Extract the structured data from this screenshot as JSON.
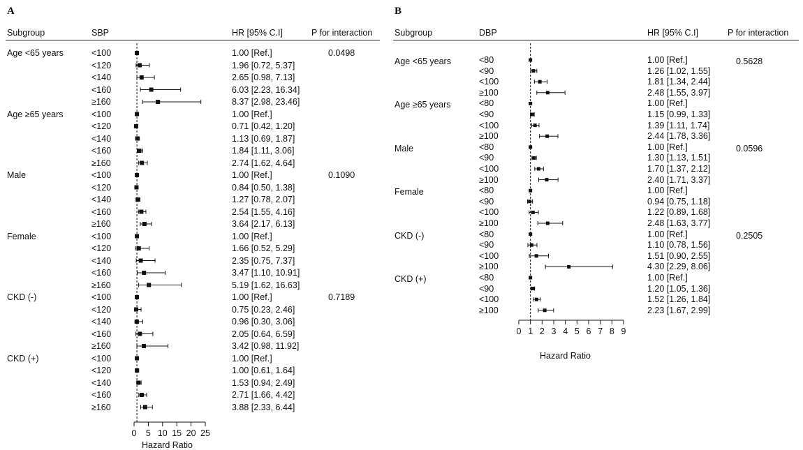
{
  "chart_data": [
    {
      "type": "forest",
      "panel_label": "A",
      "headers": {
        "subgroup": "Subgroup",
        "category": "SBP",
        "hr": "HR [95% C.I]",
        "p": "P for interaction"
      },
      "xlabel": "Hazard Ratio",
      "xlim": [
        0,
        25
      ],
      "xticks": [
        0,
        5,
        10,
        15,
        20,
        25
      ],
      "reference_line": 1,
      "groups": [
        {
          "name": "Age <65 years",
          "p": "0.0498",
          "rows": [
            {
              "cat": "<100",
              "hr": 1.0,
              "lo": null,
              "hi": null,
              "text": "1.00 [Ref.]"
            },
            {
              "cat": "<120",
              "hr": 1.96,
              "lo": 0.72,
              "hi": 5.37,
              "text": "1.96 [0.72, 5.37]"
            },
            {
              "cat": "<140",
              "hr": 2.65,
              "lo": 0.98,
              "hi": 7.13,
              "text": "2.65 [0.98, 7.13]"
            },
            {
              "cat": "<160",
              "hr": 6.03,
              "lo": 2.23,
              "hi": 16.34,
              "text": "6.03 [2.23, 16.34]"
            },
            {
              "cat": "≥160",
              "hr": 8.37,
              "lo": 2.98,
              "hi": 23.46,
              "text": "8.37 [2.98, 23.46]"
            }
          ]
        },
        {
          "name": "Age ≥65 years",
          "p": "",
          "rows": [
            {
              "cat": "<100",
              "hr": 1.0,
              "lo": null,
              "hi": null,
              "text": "1.00 [Ref.]"
            },
            {
              "cat": "<120",
              "hr": 0.71,
              "lo": 0.42,
              "hi": 1.2,
              "text": "0.71 [0.42, 1.20]"
            },
            {
              "cat": "<140",
              "hr": 1.13,
              "lo": 0.69,
              "hi": 1.87,
              "text": "1.13 [0.69, 1.87]"
            },
            {
              "cat": "<160",
              "hr": 1.84,
              "lo": 1.11,
              "hi": 3.06,
              "text": "1.84 [1.11, 3.06]"
            },
            {
              "cat": "≥160",
              "hr": 2.74,
              "lo": 1.62,
              "hi": 4.64,
              "text": "2.74 [1.62, 4.64]"
            }
          ]
        },
        {
          "name": "Male",
          "p": "0.1090",
          "rows": [
            {
              "cat": "<100",
              "hr": 1.0,
              "lo": null,
              "hi": null,
              "text": "1.00 [Ref.]"
            },
            {
              "cat": "<120",
              "hr": 0.84,
              "lo": 0.5,
              "hi": 1.38,
              "text": "0.84 [0.50, 1.38]"
            },
            {
              "cat": "<140",
              "hr": 1.27,
              "lo": 0.78,
              "hi": 2.07,
              "text": "1.27 [0.78, 2.07]"
            },
            {
              "cat": "<160",
              "hr": 2.54,
              "lo": 1.55,
              "hi": 4.16,
              "text": "2.54 [1.55, 4.16]"
            },
            {
              "cat": "≥160",
              "hr": 3.64,
              "lo": 2.17,
              "hi": 6.13,
              "text": "3.64 [2.17, 6.13]"
            }
          ]
        },
        {
          "name": "Female",
          "p": "",
          "rows": [
            {
              "cat": "<100",
              "hr": 1.0,
              "lo": null,
              "hi": null,
              "text": "1.00 [Ref.]"
            },
            {
              "cat": "<120",
              "hr": 1.66,
              "lo": 0.52,
              "hi": 5.29,
              "text": "1.66 [0.52, 5.29]"
            },
            {
              "cat": "<140",
              "hr": 2.35,
              "lo": 0.75,
              "hi": 7.37,
              "text": "2.35 [0.75, 7.37]"
            },
            {
              "cat": "<160",
              "hr": 3.47,
              "lo": 1.1,
              "hi": 10.91,
              "text": "3.47 [1.10, 10.91]"
            },
            {
              "cat": "≥160",
              "hr": 5.19,
              "lo": 1.62,
              "hi": 16.63,
              "text": "5.19 [1.62, 16.63]"
            }
          ]
        },
        {
          "name": "CKD (-)",
          "p": "0.7189",
          "rows": [
            {
              "cat": "<100",
              "hr": 1.0,
              "lo": null,
              "hi": null,
              "text": "1.00 [Ref.]"
            },
            {
              "cat": "<120",
              "hr": 0.75,
              "lo": 0.23,
              "hi": 2.46,
              "text": "0.75 [0.23, 2.46]"
            },
            {
              "cat": "<140",
              "hr": 0.96,
              "lo": 0.3,
              "hi": 3.06,
              "text": "0.96 [0.30, 3.06]"
            },
            {
              "cat": "<160",
              "hr": 2.05,
              "lo": 0.64,
              "hi": 6.59,
              "text": "2.05 [0.64, 6.59]"
            },
            {
              "cat": "≥160",
              "hr": 3.42,
              "lo": 0.98,
              "hi": 11.92,
              "text": "3.42 [0.98, 11.92]"
            }
          ]
        },
        {
          "name": "CKD (+)",
          "p": "",
          "rows": [
            {
              "cat": "<100",
              "hr": 1.0,
              "lo": null,
              "hi": null,
              "text": "1.00 [Ref.]"
            },
            {
              "cat": "<120",
              "hr": 1.0,
              "lo": 0.61,
              "hi": 1.64,
              "text": "1.00 [0.61, 1.64]"
            },
            {
              "cat": "<140",
              "hr": 1.53,
              "lo": 0.94,
              "hi": 2.49,
              "text": "1.53 [0.94, 2.49]"
            },
            {
              "cat": "<160",
              "hr": 2.71,
              "lo": 1.66,
              "hi": 4.42,
              "text": "2.71 [1.66, 4.42]"
            },
            {
              "cat": "≥160",
              "hr": 3.88,
              "lo": 2.33,
              "hi": 6.44,
              "text": "3.88 [2.33, 6.44]"
            }
          ]
        }
      ]
    },
    {
      "type": "forest",
      "panel_label": "B",
      "headers": {
        "subgroup": "Subgroup",
        "category": "DBP",
        "hr": "HR [95% C.I]",
        "p": "P for interaction"
      },
      "xlabel": "Hazard Ratio",
      "xlim": [
        0,
        9
      ],
      "xticks": [
        0,
        1,
        2,
        3,
        4,
        5,
        6,
        7,
        8,
        9
      ],
      "reference_line": 1,
      "groups": [
        {
          "name": "Age <65 years",
          "p": "0.5628",
          "rows": [
            {
              "cat": "<80",
              "hr": 1.0,
              "lo": null,
              "hi": null,
              "text": "1.00 [Ref.]"
            },
            {
              "cat": "<90",
              "hr": 1.26,
              "lo": 1.02,
              "hi": 1.55,
              "text": "1.26 [1.02, 1.55]"
            },
            {
              "cat": "<100",
              "hr": 1.81,
              "lo": 1.34,
              "hi": 2.44,
              "text": "1.81 [1.34, 2.44]"
            },
            {
              "cat": "≥100",
              "hr": 2.48,
              "lo": 1.55,
              "hi": 3.97,
              "text": "2.48 [1.55, 3.97]"
            }
          ]
        },
        {
          "name": "Age ≥65 years",
          "p": "",
          "rows": [
            {
              "cat": "<80",
              "hr": 1.0,
              "lo": null,
              "hi": null,
              "text": "1.00 [Ref.]"
            },
            {
              "cat": "<90",
              "hr": 1.15,
              "lo": 0.99,
              "hi": 1.33,
              "text": "1.15 [0.99, 1.33]"
            },
            {
              "cat": "<100",
              "hr": 1.39,
              "lo": 1.11,
              "hi": 1.74,
              "text": "1.39 [1.11, 1.74]"
            },
            {
              "cat": "≥100",
              "hr": 2.44,
              "lo": 1.78,
              "hi": 3.36,
              "text": "2.44 [1.78, 3.36]"
            }
          ]
        },
        {
          "name": "Male",
          "p": "0.0596",
          "rows": [
            {
              "cat": "<80",
              "hr": 1.0,
              "lo": null,
              "hi": null,
              "text": "1.00 [Ref.]"
            },
            {
              "cat": "<90",
              "hr": 1.3,
              "lo": 1.13,
              "hi": 1.51,
              "text": "1.30 [1.13, 1.51]"
            },
            {
              "cat": "<100",
              "hr": 1.7,
              "lo": 1.37,
              "hi": 2.12,
              "text": "1.70 [1.37, 2.12]"
            },
            {
              "cat": "≥100",
              "hr": 2.4,
              "lo": 1.71,
              "hi": 3.37,
              "text": "2.40 [1.71, 3.37]"
            }
          ]
        },
        {
          "name": "Female",
          "p": "",
          "rows": [
            {
              "cat": "<80",
              "hr": 1.0,
              "lo": null,
              "hi": null,
              "text": "1.00 [Ref.]"
            },
            {
              "cat": "<90",
              "hr": 0.94,
              "lo": 0.75,
              "hi": 1.18,
              "text": "0.94 [0.75, 1.18]"
            },
            {
              "cat": "<100",
              "hr": 1.22,
              "lo": 0.89,
              "hi": 1.68,
              "text": "1.22 [0.89, 1.68]"
            },
            {
              "cat": "≥100",
              "hr": 2.48,
              "lo": 1.63,
              "hi": 3.77,
              "text": "2.48 [1.63, 3.77]"
            }
          ]
        },
        {
          "name": "CKD (-)",
          "p": "0.2505",
          "rows": [
            {
              "cat": "<80",
              "hr": 1.0,
              "lo": null,
              "hi": null,
              "text": "1.00 [Ref.]"
            },
            {
              "cat": "<90",
              "hr": 1.1,
              "lo": 0.78,
              "hi": 1.56,
              "text": "1.10 [0.78, 1.56]"
            },
            {
              "cat": "<100",
              "hr": 1.51,
              "lo": 0.9,
              "hi": 2.55,
              "text": "1.51 [0.90, 2.55]"
            },
            {
              "cat": "≥100",
              "hr": 4.3,
              "lo": 2.29,
              "hi": 8.06,
              "text": "4.30 [2.29, 8.06]"
            }
          ]
        },
        {
          "name": "CKD (+)",
          "p": "",
          "rows": [
            {
              "cat": "<80",
              "hr": 1.0,
              "lo": null,
              "hi": null,
              "text": "1.00 [Ref.]"
            },
            {
              "cat": "<90",
              "hr": 1.2,
              "lo": 1.05,
              "hi": 1.36,
              "text": "1.20 [1.05, 1.36]"
            },
            {
              "cat": "<100",
              "hr": 1.52,
              "lo": 1.26,
              "hi": 1.84,
              "text": "1.52 [1.26, 1.84]"
            },
            {
              "cat": "≥100",
              "hr": 2.23,
              "lo": 1.67,
              "hi": 2.99,
              "text": "2.23 [1.67, 2.99]"
            }
          ]
        }
      ]
    }
  ]
}
